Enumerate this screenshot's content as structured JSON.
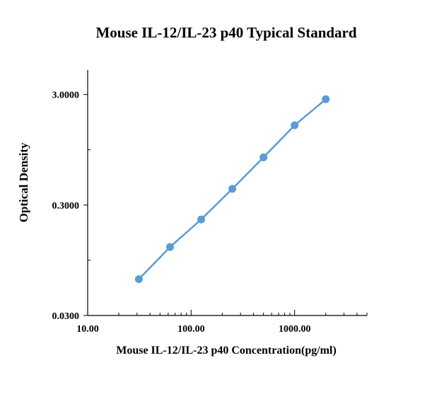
{
  "chart_data": {
    "type": "line",
    "title": "Mouse IL-12/IL-23 p40  Typical Standard",
    "xlabel": "Mouse IL-12/IL-23 p40 Concentration(pg/ml)",
    "ylabel": "Optical Density",
    "xscale": "log",
    "yscale": "log",
    "xlim": [
      10,
      5000
    ],
    "ylim": [
      0.03,
      5.0
    ],
    "xticks": [
      "10.00",
      "100.00",
      "1000.00"
    ],
    "yticks": [
      "0.0300",
      "0.3000",
      "3.0000"
    ],
    "grid": false,
    "series": [
      {
        "color": "#5b9bd5",
        "x": [
          31.25,
          62.5,
          125,
          250,
          500,
          1000,
          2000
        ],
        "y": [
          0.064,
          0.125,
          0.222,
          0.42,
          0.81,
          1.58,
          2.72
        ]
      }
    ]
  }
}
